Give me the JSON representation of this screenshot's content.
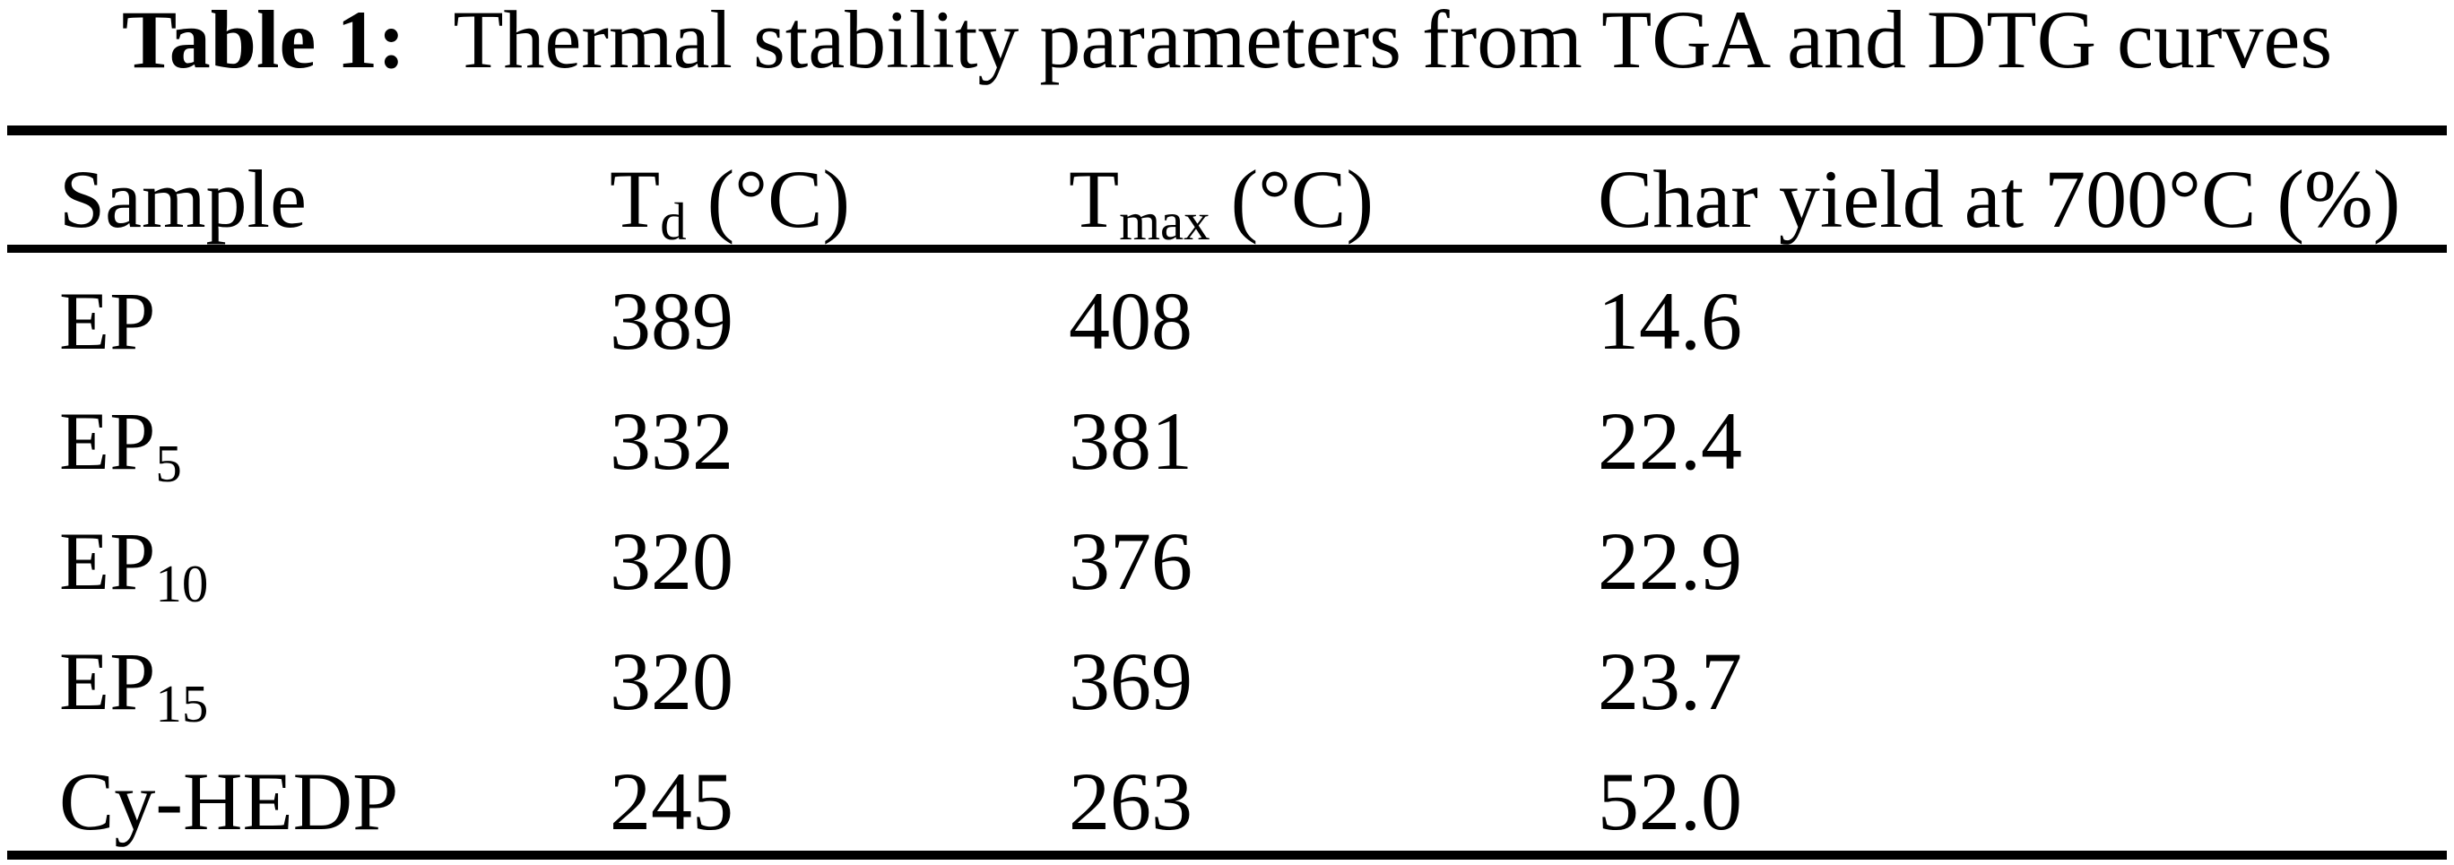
{
  "caption": {
    "label": "Table 1:",
    "text": "Thermal stability parameters from TGA and DTG curves"
  },
  "table": {
    "headers": {
      "sample": "Sample",
      "td": {
        "base": "T",
        "sub": "d",
        "unit": " (°C)"
      },
      "tmax": {
        "base": "T",
        "sub": "max",
        "unit": " (°C)"
      },
      "char_yield": "Char yield at 700°C (%)"
    },
    "rows": [
      {
        "sample": {
          "base": "EP",
          "sub": ""
        },
        "td": "389",
        "tmax": "408",
        "char_yield": "14.6"
      },
      {
        "sample": {
          "base": "EP",
          "sub": "5"
        },
        "td": "332",
        "tmax": "381",
        "char_yield": "22.4"
      },
      {
        "sample": {
          "base": "EP",
          "sub": "10"
        },
        "td": "320",
        "tmax": "376",
        "char_yield": "22.9"
      },
      {
        "sample": {
          "base": "EP",
          "sub": "15"
        },
        "td": "320",
        "tmax": "369",
        "char_yield": "23.7"
      },
      {
        "sample": {
          "base": "Cy-HEDP",
          "sub": ""
        },
        "td": "245",
        "tmax": "263",
        "char_yield": "52.0"
      }
    ]
  },
  "colors": {
    "text": "#000000",
    "background": "#ffffff",
    "rule": "#000000"
  }
}
